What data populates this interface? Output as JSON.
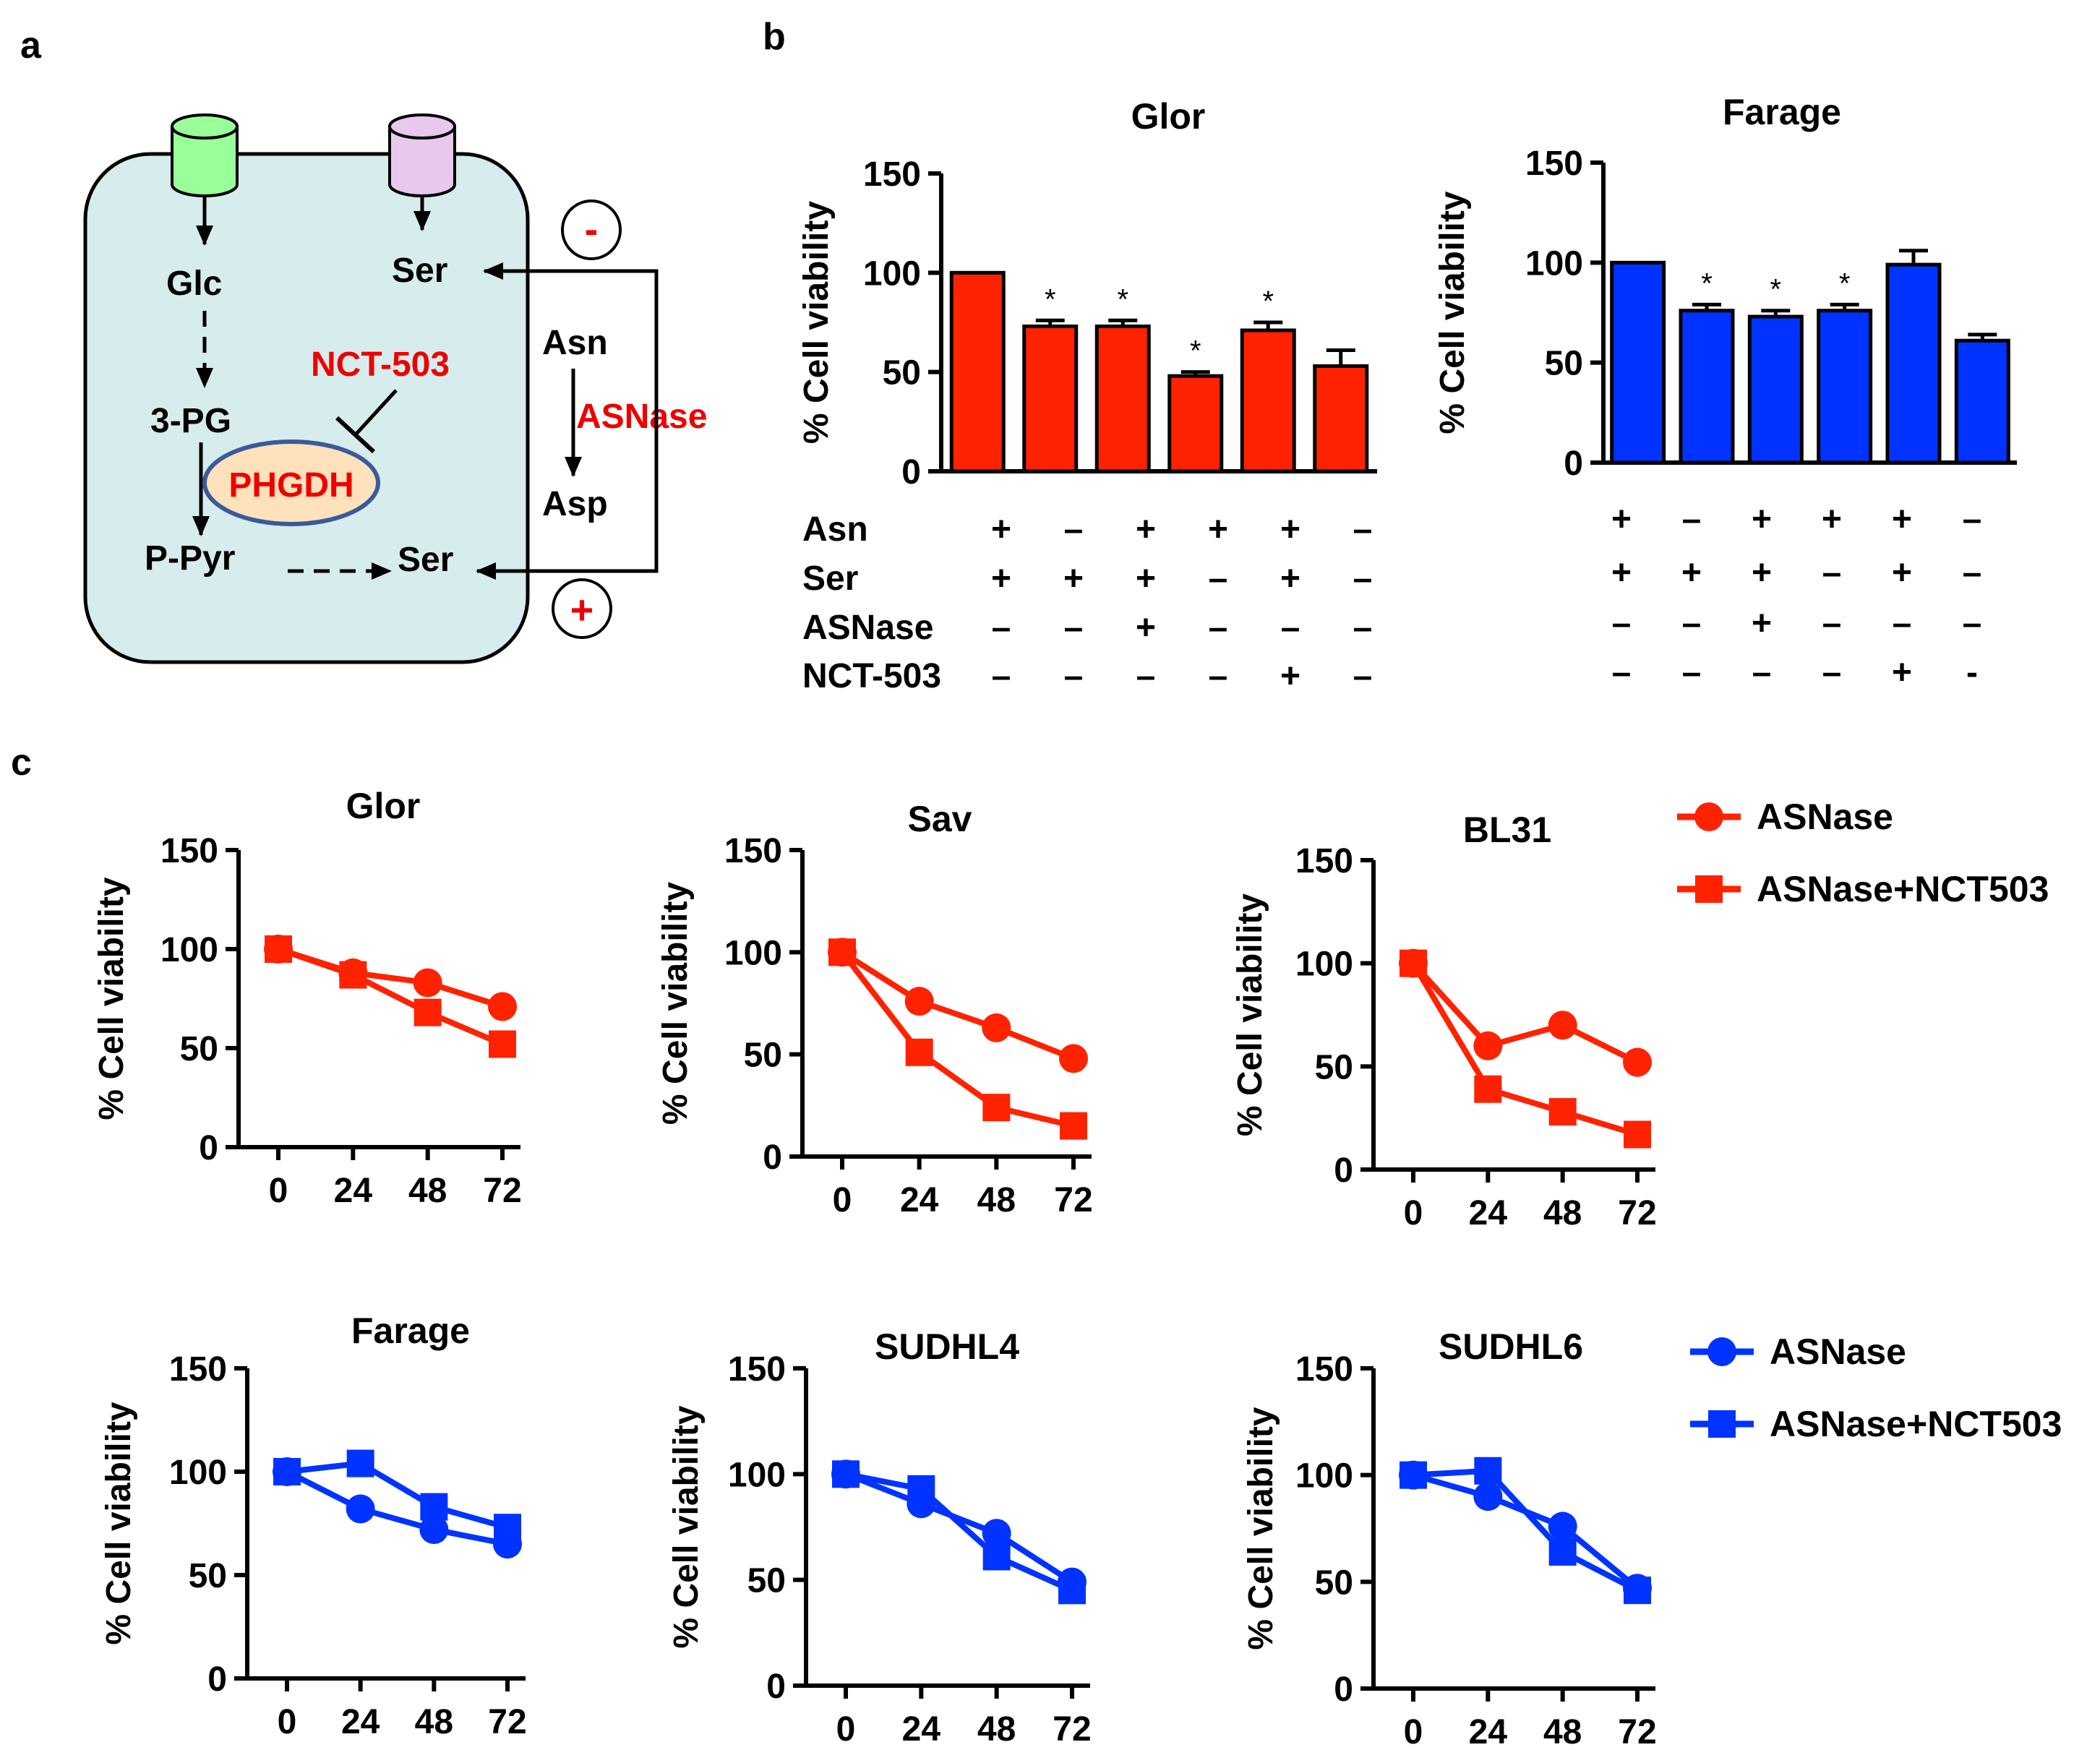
{
  "panel_labels": {
    "a": "a",
    "b": "b",
    "c": "c"
  },
  "colors": {
    "red": "#ff2200",
    "blue": "#0033ff",
    "glc_fill": "#99ff99",
    "ser_fill": "#e8c8ec",
    "cell_fill": "#d7ecec",
    "phgdh_fill": "#ffe2bb",
    "label_red": "#ee0000"
  },
  "diagram": {
    "glc": "Glc",
    "ser_top": "Ser",
    "three_pg": "3-PG",
    "nct": "NCT-503",
    "phgdh": "PHGDH",
    "ppyr": "P-Pyr",
    "ser_bottom": "Ser",
    "asn": "Asn",
    "asnase": "ASNase",
    "asp": "Asp",
    "minus": "-",
    "plus": "+"
  },
  "chart_data": [
    {
      "id": "b-glor",
      "type": "bar",
      "title": "Glor",
      "ylabel": "% Cell viability",
      "ylim": [
        0,
        150
      ],
      "yticks": [
        0,
        50,
        100,
        150
      ],
      "values": [
        100,
        73,
        73,
        48,
        71,
        53
      ],
      "errors": [
        0,
        3,
        3,
        2,
        4,
        8
      ],
      "significant": [
        false,
        true,
        true,
        true,
        true,
        false
      ],
      "sig_mark": "*",
      "color": "#ff2200",
      "conditions": [
        {
          "name": "Asn",
          "signs": [
            "+",
            "–",
            "+",
            "+",
            "+",
            "–"
          ]
        },
        {
          "name": "Ser",
          "signs": [
            "+",
            "+",
            "+",
            "–",
            "+",
            "–"
          ]
        },
        {
          "name": "ASNase",
          "signs": [
            "–",
            "–",
            "+",
            "–",
            "–",
            "–"
          ]
        },
        {
          "name": "NCT-503",
          "signs": [
            "–",
            "–",
            "–",
            "–",
            "+",
            "–"
          ]
        }
      ]
    },
    {
      "id": "b-farage",
      "type": "bar",
      "title": "Farage",
      "ylabel": "% Cell viability",
      "ylim": [
        0,
        150
      ],
      "yticks": [
        0,
        50,
        100,
        150
      ],
      "values": [
        100,
        76,
        73,
        76,
        99,
        61
      ],
      "errors": [
        0,
        3,
        3,
        3,
        7,
        3
      ],
      "significant": [
        false,
        true,
        true,
        true,
        false,
        false
      ],
      "sig_mark": "*",
      "color": "#0033ff",
      "conditions": [
        {
          "name": "Asn",
          "signs": [
            "+",
            "–",
            "+",
            "+",
            "+",
            "–"
          ]
        },
        {
          "name": "Ser",
          "signs": [
            "+",
            "+",
            "+",
            "–",
            "+",
            "–"
          ]
        },
        {
          "name": "ASNase",
          "signs": [
            "–",
            "–",
            "+",
            "–",
            "–",
            "–"
          ]
        },
        {
          "name": "NCT-503",
          "signs": [
            "–",
            "–",
            "–",
            "–",
            "+",
            "-"
          ]
        }
      ]
    },
    {
      "id": "c-glor",
      "type": "line",
      "title": "Glor",
      "ylabel": "% Cell viability",
      "x": [
        0,
        24,
        48,
        72
      ],
      "ylim": [
        0,
        150
      ],
      "yticks": [
        0,
        50,
        100,
        150
      ],
      "color": "#ff2200",
      "series": [
        {
          "name": "ASNase",
          "marker": "circle",
          "values": [
            100,
            88,
            83,
            71
          ]
        },
        {
          "name": "ASNase+NCT503",
          "marker": "square",
          "values": [
            100,
            87,
            68,
            52
          ]
        }
      ]
    },
    {
      "id": "c-sav",
      "type": "line",
      "title": "Sav",
      "ylabel": "% Cell viability",
      "x": [
        0,
        24,
        48,
        72
      ],
      "ylim": [
        0,
        150
      ],
      "yticks": [
        0,
        50,
        100,
        150
      ],
      "color": "#ff2200",
      "series": [
        {
          "name": "ASNase",
          "marker": "circle",
          "values": [
            100,
            76,
            63,
            48
          ]
        },
        {
          "name": "ASNase+NCT503",
          "marker": "square",
          "values": [
            100,
            51,
            24,
            15
          ]
        }
      ]
    },
    {
      "id": "c-bl31",
      "type": "line",
      "title": "BL31",
      "ylabel": "% Cell viability",
      "x": [
        0,
        24,
        48,
        72
      ],
      "ylim": [
        0,
        150
      ],
      "yticks": [
        0,
        50,
        100,
        150
      ],
      "color": "#ff2200",
      "series": [
        {
          "name": "ASNase",
          "marker": "circle",
          "values": [
            100,
            60,
            70,
            52
          ]
        },
        {
          "name": "ASNase+NCT503",
          "marker": "square",
          "values": [
            100,
            39,
            28,
            17
          ]
        }
      ]
    },
    {
      "id": "c-farage",
      "type": "line",
      "title": "Farage",
      "ylabel": "% Cell viability",
      "x": [
        0,
        24,
        48,
        72
      ],
      "ylim": [
        0,
        150
      ],
      "yticks": [
        0,
        50,
        100,
        150
      ],
      "color": "#0033ff",
      "series": [
        {
          "name": "ASNase",
          "marker": "circle",
          "values": [
            100,
            82,
            72,
            65
          ]
        },
        {
          "name": "ASNase+NCT503",
          "marker": "square",
          "values": [
            100,
            104,
            83,
            73
          ]
        }
      ]
    },
    {
      "id": "c-sudhl4",
      "type": "line",
      "title": "SUDHL4",
      "ylabel": "% Cell viability",
      "x": [
        0,
        24,
        48,
        72
      ],
      "ylim": [
        0,
        150
      ],
      "yticks": [
        0,
        50,
        100,
        150
      ],
      "color": "#0033ff",
      "series": [
        {
          "name": "ASNase",
          "marker": "circle",
          "values": [
            100,
            86,
            72,
            49
          ]
        },
        {
          "name": "ASNase+NCT503",
          "marker": "square",
          "values": [
            100,
            93,
            61,
            45
          ]
        }
      ]
    },
    {
      "id": "c-sudhl6",
      "type": "line",
      "title": "SUDHL6",
      "ylabel": "% Cell viability",
      "x": [
        0,
        24,
        48,
        72
      ],
      "ylim": [
        0,
        150
      ],
      "yticks": [
        0,
        50,
        100,
        150
      ],
      "color": "#0033ff",
      "series": [
        {
          "name": "ASNase",
          "marker": "circle",
          "values": [
            100,
            90,
            76,
            47
          ]
        },
        {
          "name": "ASNase+NCT503",
          "marker": "square",
          "values": [
            100,
            102,
            64,
            46
          ]
        }
      ]
    }
  ],
  "legends": [
    {
      "color": "#ff2200",
      "items": [
        {
          "label": "ASNase",
          "marker": "circle"
        },
        {
          "label": "ASNase+NCT503",
          "marker": "square"
        }
      ]
    },
    {
      "color": "#0033ff",
      "items": [
        {
          "label": "ASNase",
          "marker": "circle"
        },
        {
          "label": "ASNase+NCT503",
          "marker": "square"
        }
      ]
    }
  ]
}
